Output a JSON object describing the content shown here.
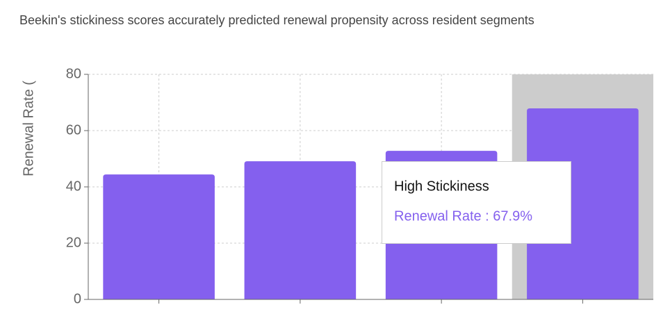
{
  "chart_data": {
    "type": "bar",
    "title": "Beekin's stickiness scores accurately predicted renewal propensity across resident segments",
    "y_label": "Renewal Rate (",
    "categories": [
      null,
      null,
      null,
      "High Stickiness"
    ],
    "values": [
      44.4,
      49.1,
      52.8,
      67.9
    ],
    "color": "#8460ee",
    "ylim": [
      0,
      80
    ],
    "yticks": [
      0,
      20,
      40,
      60,
      80
    ],
    "grid": true,
    "tooltip": {
      "category": 3,
      "entry": "Renewal Rate : 67.9%"
    }
  }
}
